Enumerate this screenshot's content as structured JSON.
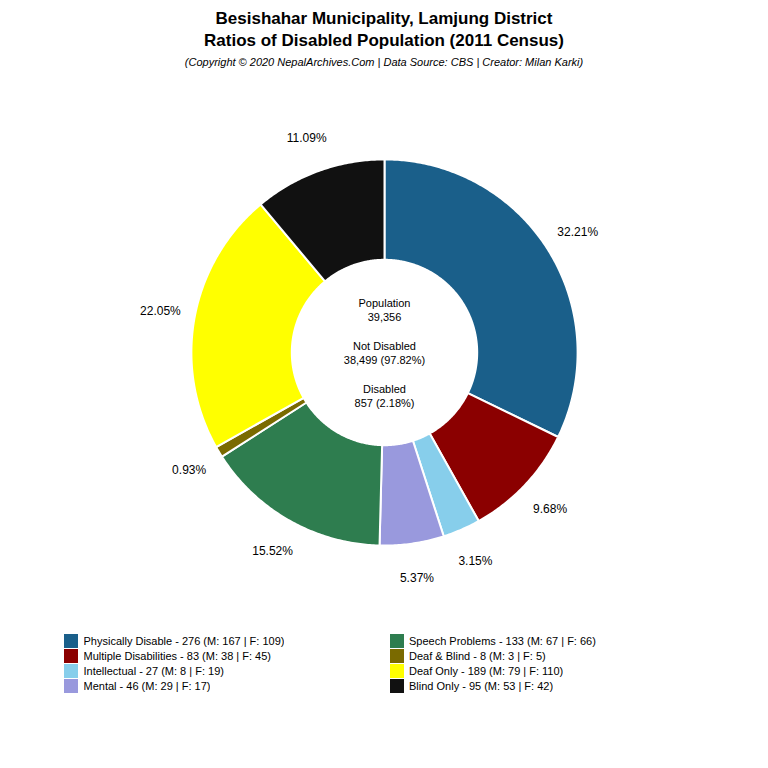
{
  "chart_data": {
    "type": "pie",
    "title": "Besishahar Municipality, Lamjung District\nRatios of Disabled Population (2011 Census)",
    "subtitle": "(Copyright © 2020 NepalArchives.Com | Data Source: CBS | Creator: Milan Karki)",
    "categories": [
      "Physically Disable - 276 (M: 167 | F: 109)",
      "Multiple Disabilities - 83 (M: 38 | F: 45)",
      "Intellectual - 27 (M: 8 | F: 19)",
      "Mental - 46 (M: 29 | F: 17)",
      "Speech Problems - 133 (M: 67 | F: 66)",
      "Deaf & Blind - 8 (M: 3 | F: 5)",
      "Deaf Only - 189 (M: 79 | F: 110)",
      "Blind Only - 95 (M: 53 | F: 42)"
    ],
    "values": [
      32.21,
      9.68,
      3.15,
      5.37,
      15.52,
      0.93,
      22.05,
      11.09
    ],
    "value_labels": [
      "32.21%",
      "9.68%",
      "3.15%",
      "5.37%",
      "15.52%",
      "0.93%",
      "22.05%",
      "11.09%"
    ],
    "colors": [
      "#1a5f8a",
      "#8b0000",
      "#87ceeb",
      "#9999dd",
      "#2e7d4f",
      "#7a6a00",
      "#ffff00",
      "#111111"
    ],
    "annotations": [
      "Population\n39,356\n\nNot Disabled\n38,499 (97.82%)\n\nDisabled\n857 (2.18%)"
    ],
    "data_labels": true,
    "legend": "bottom"
  }
}
